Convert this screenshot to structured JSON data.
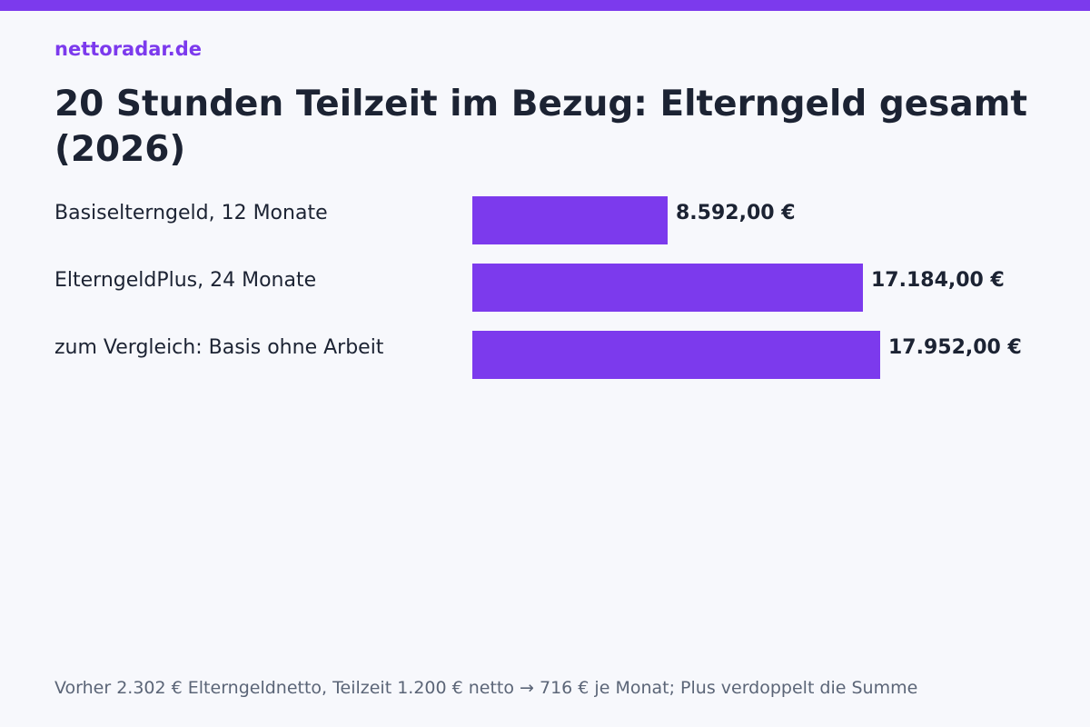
{
  "header": {
    "brand": "nettoradar.de",
    "title": "20 Stunden Teilzeit im Bezug: Elterngeld gesamt (2026)"
  },
  "footer": {
    "note": "Vorher 2.302 € Elterngeldnetto, Teilzeit 1.200 € netto → 716 € je Monat; Plus verdoppelt die Summe"
  },
  "colors": {
    "accent": "#7c3aed",
    "bar": "#7c3aed",
    "text": "#1c2333",
    "muted": "#5b6577",
    "background": "#f7f8fc"
  },
  "chart_data": {
    "type": "bar",
    "orientation": "horizontal",
    "title": "20 Stunden Teilzeit im Bezug: Elterngeld gesamt (2026)",
    "categories": [
      "Basiselterngeld, 12 Monate",
      "ElterngeldPlus, 24 Monate",
      "zum Vergleich: Basis ohne Arbeit"
    ],
    "values": [
      8592,
      17184,
      17952
    ],
    "value_labels": [
      "8.592,00 €",
      "17.184,00 €",
      "17.952,00 €"
    ],
    "xlim": [
      0,
      18750
    ],
    "grid": false,
    "legend": "none"
  }
}
